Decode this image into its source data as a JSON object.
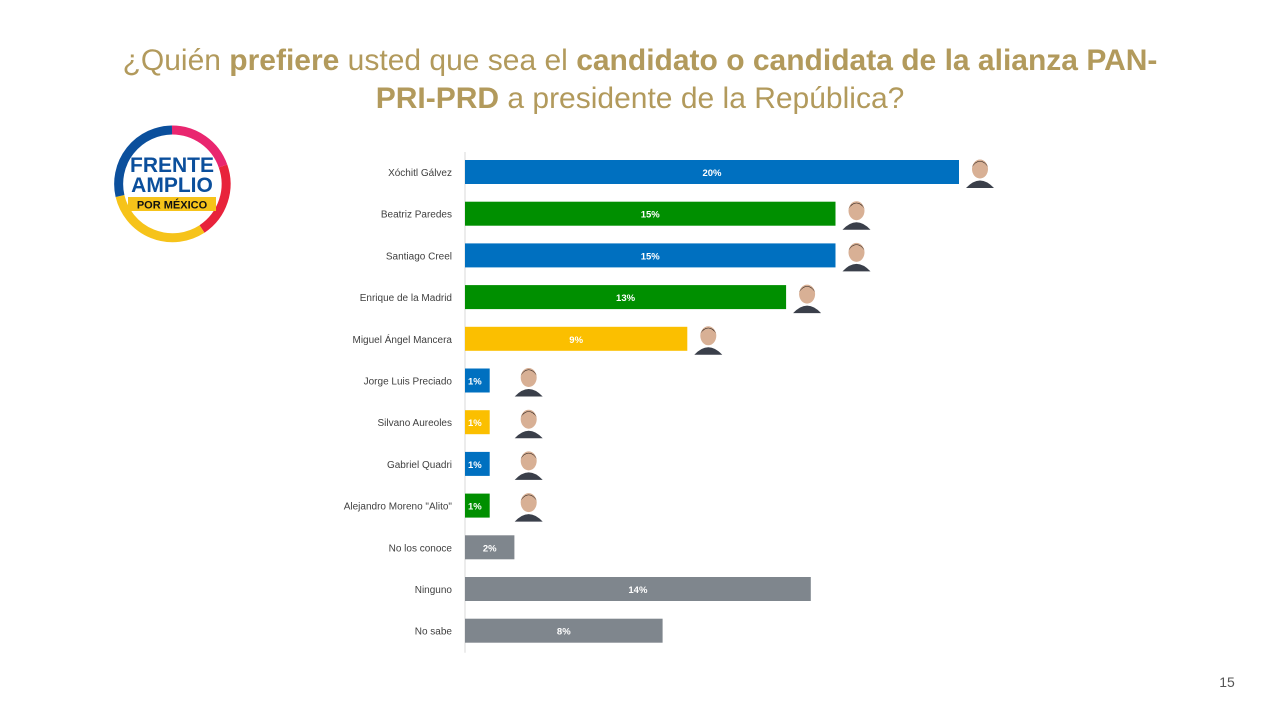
{
  "title": {
    "segments": [
      {
        "text": "¿Quién ",
        "bold": false
      },
      {
        "text": "prefiere",
        "bold": true
      },
      {
        "text": " usted que sea el ",
        "bold": false
      },
      {
        "text": "candidato o candidata de la alianza PAN-PRI-PRD",
        "bold": true
      },
      {
        "text": " a presidente de la República?",
        "bold": false
      }
    ]
  },
  "logo": {
    "line1": "FRENTE",
    "line2": "AMPLIO",
    "line3": "POR MÉXICO",
    "ring_colors": [
      "#e9266f",
      "#0b4f9c",
      "#f6c31a"
    ],
    "text_color": "#0b4f9c",
    "banner_color": "#f6c31a"
  },
  "chart_data": {
    "type": "bar",
    "orientation": "horizontal",
    "categories": [
      "Xóchitl Gálvez",
      "Beatriz Paredes",
      "Santiago Creel",
      "Enrique de la Madrid",
      "Miguel Ángel Mancera",
      "Jorge Luis Preciado",
      "Silvano Aureoles",
      "Gabriel Quadri",
      "Alejandro Moreno \"Alito\"",
      "No los conoce",
      "Ninguno",
      "No sabe"
    ],
    "values": [
      20,
      15,
      15,
      13,
      9,
      1,
      1,
      1,
      1,
      2,
      14,
      8
    ],
    "labels": [
      "20%",
      "15%",
      "15%",
      "13%",
      "9%",
      "1%",
      "1%",
      "1%",
      "1%",
      "2%",
      "14%",
      "8%"
    ],
    "colors": [
      "#0070c0",
      "#008f00",
      "#0070c0",
      "#008f00",
      "#fbbf00",
      "#0070c0",
      "#fbbf00",
      "#0070c0",
      "#008f00",
      "#7f868d",
      "#7f868d",
      "#7f868d"
    ],
    "has_photo": [
      true,
      true,
      true,
      true,
      true,
      true,
      true,
      true,
      true,
      false,
      false,
      false
    ],
    "xlim": [
      0,
      20
    ],
    "grid": false,
    "legend": "none",
    "label_color": "#ffffff"
  },
  "page_number": "15"
}
